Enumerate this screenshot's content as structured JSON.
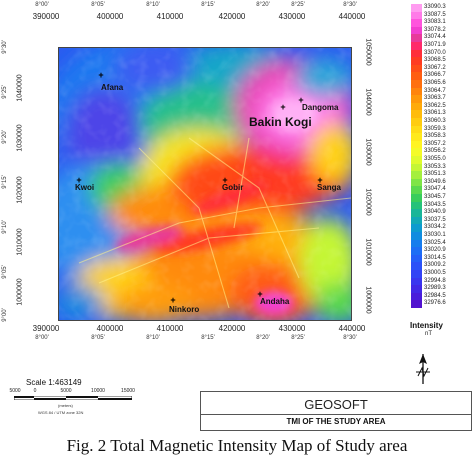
{
  "map": {
    "top_ticks": [
      "390000",
      "400000",
      "410000",
      "420000",
      "430000",
      "440000"
    ],
    "top_degrees": [
      "8°00'",
      "8°05'",
      "8°10'",
      "8°15'",
      "8°20'",
      "8°25'",
      "8°30'"
    ],
    "bottom_ticks": [
      "390000",
      "400000",
      "410000",
      "420000",
      "430000",
      "440000"
    ],
    "bottom_degrees": [
      "8°00'",
      "8°05'",
      "8°10'",
      "8°15'",
      "8°20'",
      "8°25'",
      "8°30'"
    ],
    "left_ticks": [
      "1040000",
      "1030000",
      "1020000",
      "1010000",
      "1000000"
    ],
    "left_degrees": [
      "9°30'",
      "9°25'",
      "9°20'",
      "9°15'",
      "9°10'",
      "9°05'",
      "9°00'"
    ],
    "right_ticks": [
      "1050000",
      "1040000",
      "1030000",
      "1020000",
      "1010000",
      "1000000"
    ],
    "places": [
      {
        "name": "Afana"
      },
      {
        "name": "Dangoma"
      },
      {
        "name": "Bakin Kogi"
      },
      {
        "name": "Kwoi"
      },
      {
        "name": "Gobir"
      },
      {
        "name": "Sanga"
      },
      {
        "name": "Ninkoro"
      },
      {
        "name": "Andaha"
      }
    ]
  },
  "legend": {
    "values": [
      "33090.3",
      "33087.5",
      "33083.1",
      "33078.2",
      "33074.4",
      "33071.9",
      "33070.0",
      "33068.5",
      "33067.2",
      "33066.7",
      "33065.6",
      "33064.7",
      "33063.7",
      "33062.5",
      "33061.3",
      "33060.3",
      "33059.3",
      "33058.3",
      "33057.2",
      "33056.2",
      "33055.0",
      "33053.3",
      "33051.3",
      "33049.6",
      "33047.4",
      "33045.7",
      "33043.5",
      "33040.9",
      "33037.5",
      "33034.2",
      "33030.1",
      "33025.4",
      "33020.9",
      "33014.5",
      "33009.2",
      "33000.5",
      "32994.8",
      "32989.3",
      "32984.5",
      "32976.6"
    ],
    "unit": "Intensity",
    "unit_sub": "nT",
    "colors_top_to_bottom": [
      "#ff9cf0",
      "#ff7be8",
      "#ff55dd",
      "#f23fcf",
      "#e73a9a",
      "#ff2a6a",
      "#ff2f3a",
      "#ff3c22",
      "#ff4d18",
      "#ff5e12",
      "#ff700f",
      "#ff840c",
      "#ff980a",
      "#ffaa0a",
      "#ffbc0c",
      "#ffcc10",
      "#ffdc16",
      "#ffe91c",
      "#fff422",
      "#f4fb28",
      "#e0fb2e",
      "#c4f636",
      "#a4ef3e",
      "#7fe546",
      "#5ad94e",
      "#38cd5c",
      "#25c27a",
      "#1ab698",
      "#12a9b6",
      "#0d9bcf",
      "#108ce0",
      "#167ded",
      "#1d6ef5",
      "#245ff8",
      "#2b51f8",
      "#3243f5",
      "#3a36ef",
      "#4229e6",
      "#4a1ddb",
      "#5212cf"
    ]
  },
  "scale": {
    "title": "Scale 1:463149",
    "labels": [
      "5000",
      "0",
      "5000",
      "10000",
      "15000"
    ],
    "unit": "(meters)",
    "projection": "WGS 84 / UTM zone 32N"
  },
  "title_block": {
    "company": "GEOSOFT",
    "title": "TMI OF THE STUDY AREA"
  },
  "caption": "Fig. 2 Total Magnetic Intensity Map of Study area"
}
